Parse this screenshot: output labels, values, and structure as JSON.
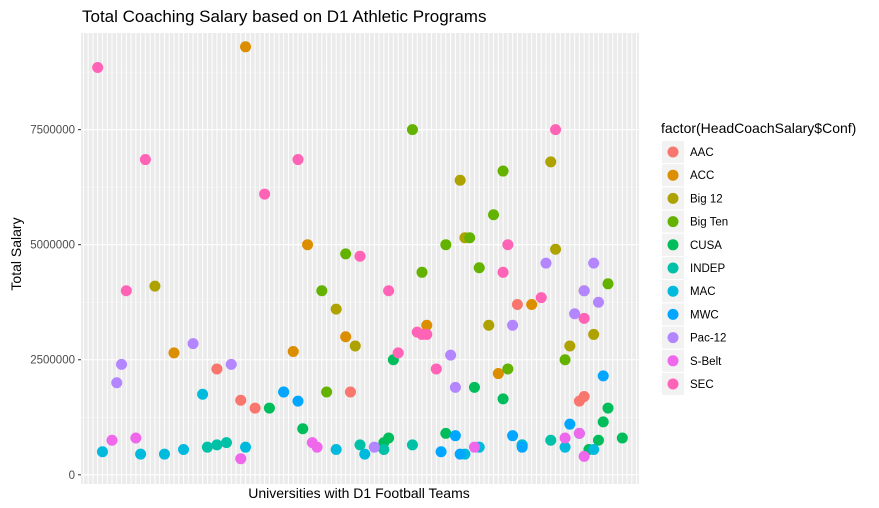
{
  "chart_data": {
    "type": "scatter",
    "title": "Total Coaching Salary based on D1 Athletic Programs",
    "xlabel": "Universities with D1 Football Teams",
    "ylabel": "Total Salary",
    "ylim": [
      0,
      9400000
    ],
    "y_ticks": [
      {
        "value": 0,
        "label": "0"
      },
      {
        "value": 2500000,
        "label": "2500000"
      },
      {
        "value": 5000000,
        "label": "5000000"
      },
      {
        "value": 7500000,
        "label": "7500000"
      }
    ],
    "x_tick_labels_shown": false,
    "grid": true,
    "legend_position": "right",
    "legend_title": "factor(HeadCoachSalary$Conf)",
    "panel_background": "#ebebeb",
    "series": [
      {
        "name": "AAC",
        "color": "#f8766d",
        "points": [
          [
            29,
            2300000
          ],
          [
            34,
            1620000
          ],
          [
            37,
            1450000
          ],
          [
            57,
            1800000
          ],
          [
            92,
            3700000
          ],
          [
            105,
            1600000
          ],
          [
            106,
            1700000
          ]
        ]
      },
      {
        "name": "ACC",
        "color": "#db8e00",
        "points": [
          [
            20,
            2650000
          ],
          [
            35,
            9300000
          ],
          [
            45,
            2680000
          ],
          [
            48,
            5000000
          ],
          [
            56,
            3000000
          ],
          [
            73,
            3250000
          ],
          [
            88,
            2200000
          ],
          [
            95,
            3700000
          ],
          [
            106,
            4000000
          ]
        ]
      },
      {
        "name": "Big 12",
        "color": "#aea200",
        "points": [
          [
            16,
            4100000
          ],
          [
            54,
            3600000
          ],
          [
            58,
            2800000
          ],
          [
            80,
            6400000
          ],
          [
            81,
            5150000
          ],
          [
            86,
            3250000
          ],
          [
            99,
            6800000
          ],
          [
            100,
            4900000
          ],
          [
            103,
            2800000
          ],
          [
            108,
            3050000
          ]
        ]
      },
      {
        "name": "Big Ten",
        "color": "#64b200",
        "points": [
          [
            51,
            4000000
          ],
          [
            52,
            1800000
          ],
          [
            56,
            4800000
          ],
          [
            70,
            7500000
          ],
          [
            72,
            4400000
          ],
          [
            77,
            5000000
          ],
          [
            82,
            5150000
          ],
          [
            84,
            4500000
          ],
          [
            87,
            5650000
          ],
          [
            89,
            6600000
          ],
          [
            90,
            2300000
          ],
          [
            102,
            2500000
          ],
          [
            111,
            4150000
          ]
        ]
      },
      {
        "name": "CUSA",
        "color": "#00bd5c",
        "points": [
          [
            40,
            1450000
          ],
          [
            47,
            1000000
          ],
          [
            64,
            700000
          ],
          [
            65,
            800000
          ],
          [
            66,
            2500000
          ],
          [
            77,
            900000
          ],
          [
            83,
            1900000
          ],
          [
            89,
            1650000
          ],
          [
            93,
            650000
          ],
          [
            107,
            550000
          ],
          [
            109,
            750000
          ],
          [
            110,
            1150000
          ],
          [
            111,
            1450000
          ],
          [
            114,
            800000
          ]
        ]
      },
      {
        "name": "INDEP",
        "color": "#00c1a7",
        "points": [
          [
            27,
            600000
          ],
          [
            29,
            650000
          ],
          [
            31,
            700000
          ],
          [
            59,
            650000
          ],
          [
            64,
            550000
          ],
          [
            70,
            650000
          ],
          [
            99,
            750000
          ]
        ]
      },
      {
        "name": "MAC",
        "color": "#00bade",
        "points": [
          [
            5,
            500000
          ],
          [
            13,
            450000
          ],
          [
            18,
            450000
          ],
          [
            22,
            550000
          ],
          [
            26,
            1750000
          ],
          [
            35,
            600000
          ],
          [
            43,
            1800000
          ],
          [
            54,
            550000
          ],
          [
            60,
            450000
          ],
          [
            81,
            450000
          ],
          [
            84,
            600000
          ],
          [
            93,
            650000
          ],
          [
            102,
            600000
          ],
          [
            108,
            550000
          ]
        ]
      },
      {
        "name": "MWC",
        "color": "#00a6ff",
        "points": [
          [
            43,
            1800000
          ],
          [
            46,
            1600000
          ],
          [
            76,
            500000
          ],
          [
            79,
            850000
          ],
          [
            80,
            450000
          ],
          [
            91,
            850000
          ],
          [
            93,
            600000
          ],
          [
            103,
            1100000
          ],
          [
            105,
            900000
          ],
          [
            110,
            2150000
          ]
        ]
      },
      {
        "name": "Pac-12",
        "color": "#b385ff",
        "points": [
          [
            8,
            2000000
          ],
          [
            9,
            2400000
          ],
          [
            24,
            2850000
          ],
          [
            32,
            2400000
          ],
          [
            62,
            600000
          ],
          [
            78,
            2600000
          ],
          [
            79,
            1900000
          ],
          [
            91,
            3250000
          ],
          [
            98,
            4600000
          ],
          [
            104,
            3500000
          ],
          [
            106,
            4000000
          ],
          [
            108,
            4600000
          ],
          [
            109,
            3750000
          ]
        ]
      },
      {
        "name": "S-Belt",
        "color": "#ef67eb",
        "points": [
          [
            7,
            750000
          ],
          [
            12,
            800000
          ],
          [
            34,
            350000
          ],
          [
            49,
            700000
          ],
          [
            50,
            600000
          ],
          [
            83,
            600000
          ],
          [
            102,
            800000
          ],
          [
            105,
            900000
          ],
          [
            106,
            400000
          ]
        ]
      },
      {
        "name": "SEC",
        "color": "#ff63b6",
        "points": [
          [
            4,
            8850000
          ],
          [
            10,
            4000000
          ],
          [
            14,
            6850000
          ],
          [
            39,
            6100000
          ],
          [
            46,
            6850000
          ],
          [
            59,
            4750000
          ],
          [
            65,
            4000000
          ],
          [
            67,
            2650000
          ],
          [
            71,
            3100000
          ],
          [
            72,
            3050000
          ],
          [
            73,
            3050000
          ],
          [
            75,
            2300000
          ],
          [
            89,
            4400000
          ],
          [
            90,
            5000000
          ],
          [
            97,
            3850000
          ],
          [
            100,
            7500000
          ],
          [
            106,
            3400000
          ]
        ]
      }
    ]
  }
}
